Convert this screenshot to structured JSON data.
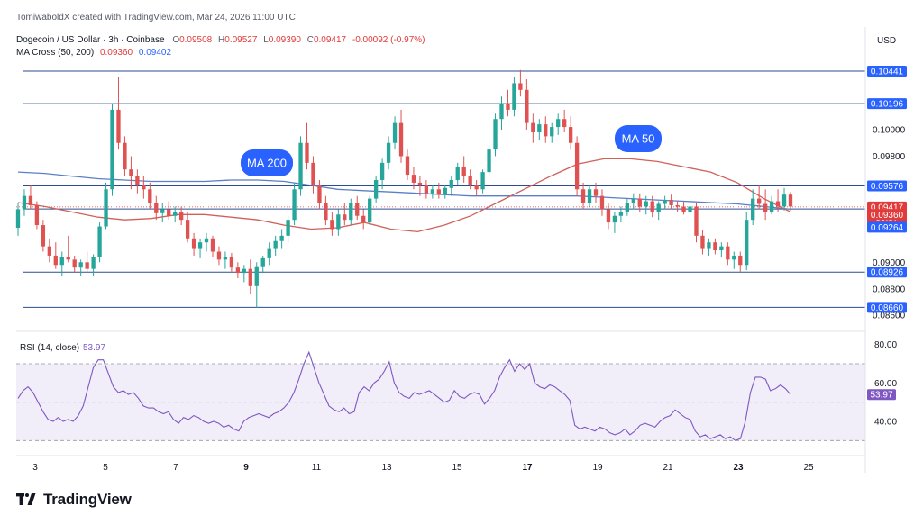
{
  "header": {
    "attribution": "TomiwaboldX created with TradingView.com, Mar 24, 2026 11:00 UTC",
    "symbol": "Dogecoin / US Dollar · 3h · Coinbase",
    "ohlc": {
      "o_label": "O",
      "o": "0.09508",
      "h_label": "H",
      "h": "0.09527",
      "l_label": "L",
      "l": "0.09390",
      "c_label": "C",
      "c": "0.09417",
      "change": "-0.00092 (-0.97%)"
    },
    "ma_indicator": "MA Cross (50, 200)",
    "ma50_value": "0.09360",
    "ma200_value": "0.09402",
    "currency": "USD"
  },
  "chart_data": {
    "type": "candlestick",
    "symbol": "DOGE/USD",
    "timeframe": "3h",
    "x_ticks": [
      "3",
      "5",
      "7",
      "9",
      "11",
      "13",
      "15",
      "17",
      "19",
      "21",
      "23",
      "25"
    ],
    "y_ticks": [
      "0.10000",
      "0.09800",
      "0.09000",
      "0.08800",
      "0.08600"
    ],
    "ylim": [
      0.0852,
      0.1055
    ],
    "horizontal_levels": [
      0.10441,
      0.10196,
      0.09576,
      0.09402,
      0.08926,
      0.0866
    ],
    "price_labels": [
      {
        "value": 0.10441,
        "text": "0.10441",
        "color": "#2962ff"
      },
      {
        "value": 0.10196,
        "text": "0.10196",
        "color": "#2962ff"
      },
      {
        "value": 0.09576,
        "text": "0.09576",
        "color": "#2962ff"
      },
      {
        "value": 0.09417,
        "text": "0.09417",
        "sub": "59:57",
        "color": "#e03a3a"
      },
      {
        "value": 0.0936,
        "text": "0.09360",
        "color": "#e03a3a"
      },
      {
        "value": 0.09264,
        "text": "0.09264",
        "color": "#2962ff"
      },
      {
        "value": 0.08926,
        "text": "0.08926",
        "color": "#2962ff"
      },
      {
        "value": 0.0866,
        "text": "0.08660",
        "color": "#2962ff"
      }
    ],
    "annotations": [
      {
        "text": "MA 200",
        "color": "#2962ff"
      },
      {
        "text": "MA 50",
        "color": "#2962ff"
      }
    ],
    "candles": [
      [
        0.0926,
        0.0945,
        0.092,
        0.094
      ],
      [
        0.094,
        0.0955,
        0.0935,
        0.095
      ],
      [
        0.095,
        0.0958,
        0.094,
        0.0943
      ],
      [
        0.0943,
        0.0946,
        0.0925,
        0.0928
      ],
      [
        0.0928,
        0.0932,
        0.0908,
        0.0912
      ],
      [
        0.0912,
        0.0918,
        0.09,
        0.0905
      ],
      [
        0.0905,
        0.0915,
        0.0895,
        0.0898
      ],
      [
        0.0898,
        0.0908,
        0.089,
        0.0904
      ],
      [
        0.0904,
        0.092,
        0.09,
        0.0902
      ],
      [
        0.0902,
        0.0905,
        0.0892,
        0.0896
      ],
      [
        0.0896,
        0.0902,
        0.089,
        0.09
      ],
      [
        0.09,
        0.0908,
        0.0893,
        0.0895
      ],
      [
        0.0895,
        0.0906,
        0.089,
        0.0904
      ],
      [
        0.0904,
        0.093,
        0.09,
        0.0927
      ],
      [
        0.0927,
        0.096,
        0.0925,
        0.0955
      ],
      [
        0.0955,
        0.102,
        0.095,
        0.1015
      ],
      [
        0.1015,
        0.104,
        0.0985,
        0.099
      ],
      [
        0.099,
        0.0995,
        0.0965,
        0.097
      ],
      [
        0.097,
        0.098,
        0.0955,
        0.0965
      ],
      [
        0.0965,
        0.097,
        0.0952,
        0.0958
      ],
      [
        0.0958,
        0.0965,
        0.0948,
        0.0955
      ],
      [
        0.0955,
        0.096,
        0.094,
        0.0945
      ],
      [
        0.0945,
        0.095,
        0.0932,
        0.0937
      ],
      [
        0.0937,
        0.0945,
        0.093,
        0.094
      ],
      [
        0.094,
        0.0946,
        0.0932,
        0.0935
      ],
      [
        0.0935,
        0.0942,
        0.093,
        0.0938
      ],
      [
        0.0938,
        0.0942,
        0.0928,
        0.0932
      ],
      [
        0.0932,
        0.0938,
        0.0915,
        0.0918
      ],
      [
        0.0918,
        0.0922,
        0.0905,
        0.091
      ],
      [
        0.091,
        0.0918,
        0.0903,
        0.0915
      ],
      [
        0.0915,
        0.0922,
        0.0908,
        0.0918
      ],
      [
        0.0918,
        0.092,
        0.0904,
        0.0908
      ],
      [
        0.0908,
        0.0912,
        0.0898,
        0.0902
      ],
      [
        0.0902,
        0.0908,
        0.0895,
        0.0904
      ],
      [
        0.0904,
        0.0907,
        0.0893,
        0.0896
      ],
      [
        0.0896,
        0.09,
        0.0888,
        0.0892
      ],
      [
        0.0892,
        0.0898,
        0.0885,
        0.0895
      ],
      [
        0.0895,
        0.0902,
        0.0876,
        0.0882
      ],
      [
        0.0882,
        0.09,
        0.0866,
        0.0897
      ],
      [
        0.0897,
        0.0905,
        0.0892,
        0.0903
      ],
      [
        0.0903,
        0.0915,
        0.0898,
        0.091
      ],
      [
        0.091,
        0.092,
        0.0905,
        0.0916
      ],
      [
        0.0916,
        0.0925,
        0.091,
        0.092
      ],
      [
        0.092,
        0.0935,
        0.0915,
        0.0932
      ],
      [
        0.0932,
        0.096,
        0.0928,
        0.0955
      ],
      [
        0.0955,
        0.0995,
        0.095,
        0.099
      ],
      [
        0.099,
        0.1005,
        0.097,
        0.0975
      ],
      [
        0.0975,
        0.098,
        0.0952,
        0.0958
      ],
      [
        0.0958,
        0.0962,
        0.094,
        0.0945
      ],
      [
        0.0945,
        0.095,
        0.0928,
        0.0932
      ],
      [
        0.0932,
        0.0938,
        0.092,
        0.0925
      ],
      [
        0.0925,
        0.094,
        0.092,
        0.0936
      ],
      [
        0.0936,
        0.0945,
        0.0928,
        0.0932
      ],
      [
        0.0932,
        0.0948,
        0.0928,
        0.0945
      ],
      [
        0.0945,
        0.095,
        0.0932,
        0.0935
      ],
      [
        0.0935,
        0.094,
        0.0925,
        0.093
      ],
      [
        0.093,
        0.095,
        0.0928,
        0.0948
      ],
      [
        0.0948,
        0.0965,
        0.0945,
        0.0962
      ],
      [
        0.0962,
        0.0978,
        0.0955,
        0.0975
      ],
      [
        0.0975,
        0.0995,
        0.097,
        0.099
      ],
      [
        0.099,
        0.101,
        0.0985,
        0.1005
      ],
      [
        0.1005,
        0.1015,
        0.0975,
        0.098
      ],
      [
        0.098,
        0.0985,
        0.0962,
        0.0966
      ],
      [
        0.0966,
        0.0972,
        0.0955,
        0.096
      ],
      [
        0.096,
        0.0965,
        0.095,
        0.0958
      ],
      [
        0.0958,
        0.0962,
        0.0948,
        0.0952
      ],
      [
        0.0952,
        0.0958,
        0.0948,
        0.0955
      ],
      [
        0.0955,
        0.096,
        0.0948,
        0.0951
      ],
      [
        0.0951,
        0.0958,
        0.0948,
        0.0956
      ],
      [
        0.0956,
        0.0965,
        0.095,
        0.0962
      ],
      [
        0.0962,
        0.0975,
        0.0958,
        0.0972
      ],
      [
        0.0972,
        0.098,
        0.096,
        0.0965
      ],
      [
        0.0965,
        0.097,
        0.0955,
        0.0958
      ],
      [
        0.0958,
        0.0962,
        0.095,
        0.0955
      ],
      [
        0.0955,
        0.097,
        0.0952,
        0.0968
      ],
      [
        0.0968,
        0.099,
        0.0965,
        0.0985
      ],
      [
        0.0985,
        0.1012,
        0.098,
        0.1008
      ],
      [
        0.1008,
        0.1025,
        0.1,
        0.102
      ],
      [
        0.102,
        0.103,
        0.101,
        0.1015
      ],
      [
        0.1015,
        0.104,
        0.101,
        0.1035
      ],
      [
        0.1035,
        0.1045,
        0.1025,
        0.103
      ],
      [
        0.103,
        0.1038,
        0.1,
        0.1005
      ],
      [
        0.1005,
        0.1012,
        0.099,
        0.0998
      ],
      [
        0.0998,
        0.1008,
        0.0992,
        0.1004
      ],
      [
        0.1004,
        0.101,
        0.099,
        0.0995
      ],
      [
        0.0995,
        0.1005,
        0.099,
        0.1002
      ],
      [
        0.1002,
        0.1012,
        0.0996,
        0.1008
      ],
      [
        0.1008,
        0.1015,
        0.0998,
        0.1002
      ],
      [
        0.1002,
        0.101,
        0.0985,
        0.099
      ],
      [
        0.099,
        0.0995,
        0.095,
        0.0955
      ],
      [
        0.0955,
        0.096,
        0.094,
        0.0945
      ],
      [
        0.0945,
        0.0958,
        0.0942,
        0.0955
      ],
      [
        0.0955,
        0.096,
        0.0945,
        0.095
      ],
      [
        0.095,
        0.0955,
        0.0935,
        0.094
      ],
      [
        0.094,
        0.0945,
        0.0925,
        0.093
      ],
      [
        0.093,
        0.0938,
        0.0922,
        0.0935
      ],
      [
        0.0935,
        0.0942,
        0.093,
        0.0938
      ],
      [
        0.0938,
        0.0948,
        0.0935,
        0.0945
      ],
      [
        0.0945,
        0.0952,
        0.094,
        0.0948
      ],
      [
        0.0948,
        0.0952,
        0.0938,
        0.0942
      ],
      [
        0.0942,
        0.095,
        0.0936,
        0.0946
      ],
      [
        0.0946,
        0.095,
        0.0934,
        0.0938
      ],
      [
        0.0938,
        0.0946,
        0.0932,
        0.0944
      ],
      [
        0.0944,
        0.095,
        0.094,
        0.0947
      ],
      [
        0.0947,
        0.0951,
        0.094,
        0.0943
      ],
      [
        0.0943,
        0.0946,
        0.0938,
        0.0942
      ],
      [
        0.0942,
        0.0946,
        0.0936,
        0.0938
      ],
      [
        0.0938,
        0.0944,
        0.0934,
        0.0942
      ],
      [
        0.0942,
        0.0945,
        0.0915,
        0.092
      ],
      [
        0.092,
        0.0924,
        0.0906,
        0.091
      ],
      [
        0.091,
        0.0918,
        0.0905,
        0.0915
      ],
      [
        0.0915,
        0.0918,
        0.0906,
        0.0909
      ],
      [
        0.0909,
        0.0915,
        0.0904,
        0.0912
      ],
      [
        0.0912,
        0.0915,
        0.0898,
        0.0902
      ],
      [
        0.0902,
        0.0908,
        0.0895,
        0.0905
      ],
      [
        0.0905,
        0.0908,
        0.0893,
        0.0898
      ],
      [
        0.0898,
        0.0938,
        0.0894,
        0.0932
      ],
      [
        0.0932,
        0.0955,
        0.0928,
        0.0948
      ],
      [
        0.0948,
        0.0958,
        0.094,
        0.0944
      ],
      [
        0.0944,
        0.0955,
        0.0932,
        0.0938
      ],
      [
        0.0938,
        0.095,
        0.0936,
        0.0946
      ],
      [
        0.0946,
        0.0955,
        0.0938,
        0.0942
      ],
      [
        0.0942,
        0.0956,
        0.0939,
        0.0951
      ],
      [
        0.0951,
        0.0953,
        0.0939,
        0.0942
      ]
    ],
    "ma50": [
      0.0945,
      0.0942,
      0.0938,
      0.0934,
      0.0932,
      0.0933,
      0.0936,
      0.0936,
      0.0934,
      0.0932,
      0.0928,
      0.0925,
      0.0926,
      0.093,
      0.0925,
      0.0923,
      0.0928,
      0.0935,
      0.0945,
      0.0955,
      0.0965,
      0.0974,
      0.0978,
      0.0978,
      0.0976,
      0.0972,
      0.0968,
      0.096,
      0.0948,
      0.0938
    ],
    "ma200": [
      0.0968,
      0.0967,
      0.0965,
      0.0963,
      0.0962,
      0.0961,
      0.0961,
      0.0961,
      0.0962,
      0.0962,
      0.0961,
      0.0958,
      0.0955,
      0.0954,
      0.0953,
      0.0952,
      0.0951,
      0.095,
      0.095,
      0.095,
      0.095,
      0.095,
      0.0949,
      0.0948,
      0.0947,
      0.0946,
      0.0945,
      0.0944,
      0.0942,
      0.094
    ],
    "rsi": {
      "label": "RSI (14, close)",
      "value_text": "53.97",
      "y_ticks": [
        "80.00",
        "60.00",
        "40.00"
      ],
      "ylim": [
        25,
        85
      ],
      "band": [
        30,
        70
      ],
      "midline": 50,
      "values": [
        52,
        56,
        58,
        55,
        50,
        45,
        41,
        40,
        42,
        40,
        41,
        40,
        43,
        48,
        58,
        68,
        72,
        72,
        65,
        58,
        55,
        56,
        54,
        55,
        52,
        48,
        47,
        47,
        45,
        44,
        45,
        41,
        39,
        42,
        41,
        43,
        42,
        40,
        39,
        40,
        39,
        37,
        38,
        36,
        35,
        40,
        42,
        43,
        44,
        43,
        42,
        44,
        45,
        47,
        50,
        55,
        62,
        70,
        76,
        68,
        60,
        54,
        48,
        46,
        45,
        47,
        44,
        45,
        55,
        58,
        56,
        60,
        62,
        66,
        71,
        60,
        55,
        53,
        52,
        55,
        54,
        55,
        56,
        54,
        52,
        50,
        51,
        56,
        53,
        52,
        54,
        55,
        54,
        49,
        52,
        56,
        63,
        68,
        72,
        66,
        70,
        67,
        70,
        60,
        58,
        57,
        59,
        58,
        56,
        54,
        51,
        38,
        36,
        37,
        36,
        35,
        37,
        36,
        34,
        33,
        34,
        36,
        33,
        35,
        38,
        39,
        38,
        37,
        40,
        42,
        43,
        46,
        44,
        42,
        41,
        35,
        32,
        33,
        31,
        32,
        33,
        31,
        32,
        30,
        31,
        40,
        55,
        63,
        63,
        62,
        56,
        57,
        59,
        57,
        54
      ]
    },
    "legend_position": "top-left"
  },
  "footer": {
    "brand": "TradingView"
  }
}
